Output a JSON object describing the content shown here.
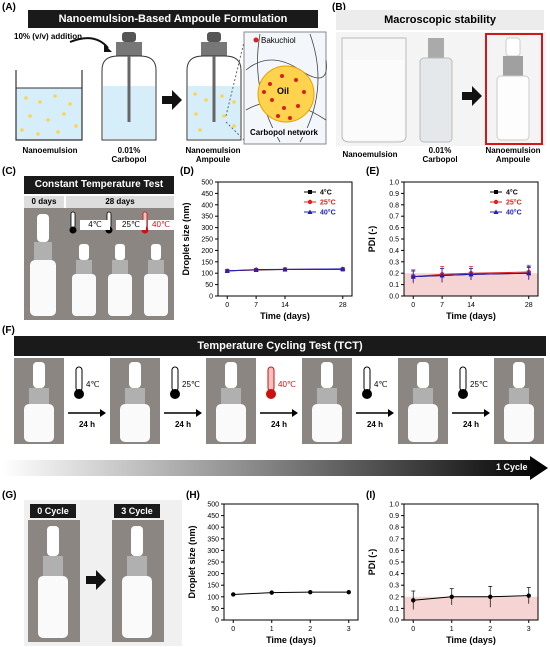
{
  "panels": {
    "a": {
      "letter": "(A)",
      "title": "Nanoemulsion-Based Ampoule Formulation",
      "addition": "10% (v/v) addition",
      "labels": [
        "Nanoemulsion",
        "0.01%\nCarbopol",
        "Nanoemulsion\nAmpoule"
      ],
      "legend": "Bakuchiol",
      "oil": "Oil",
      "network": "Carbopol network"
    },
    "b": {
      "letter": "(B)",
      "title": "Macroscopic stability",
      "labels": [
        "Nanoemulsion",
        "0.01%\nCarbopol",
        "Nanoemulsion\nAmpoule"
      ]
    },
    "c": {
      "letter": "(C)",
      "title": "Constant Temperature Test",
      "day0": "0 days",
      "day28": "28 days",
      "temps": [
        "4℃",
        "25℃",
        "40℃"
      ]
    },
    "d": {
      "letter": "(D)"
    },
    "e": {
      "letter": "(E)"
    },
    "f": {
      "letter": "(F)",
      "title": "Temperature Cycling Test (TCT)",
      "steps": [
        {
          "temp": "4℃",
          "time": "24 h"
        },
        {
          "temp": "25℃",
          "time": "24 h"
        },
        {
          "temp": "40℃",
          "time": "24 h"
        },
        {
          "temp": "4℃",
          "time": "24 h"
        },
        {
          "temp": "25℃",
          "time": "24 h"
        }
      ],
      "cycle": "1 Cycle"
    },
    "g": {
      "letter": "(G)",
      "labels": [
        "0 Cycle",
        "3 Cycle"
      ]
    },
    "h": {
      "letter": "(H)"
    },
    "i": {
      "letter": "(I)"
    }
  },
  "colors": {
    "c4": "#000000",
    "c25": "#e02020",
    "c40": "#2020c0",
    "hot": "#cc1111",
    "pdi_band": "#f6d4d4"
  },
  "chart_data": [
    {
      "id": "D",
      "type": "line",
      "xlabel": "Time (days)",
      "ylabel": "Droplet size (nm)",
      "x": [
        0,
        7,
        14,
        28
      ],
      "xticks": [
        "0",
        "7",
        "14",
        "28"
      ],
      "ylim": [
        0,
        500
      ],
      "yticks": [
        0,
        50,
        100,
        150,
        200,
        250,
        300,
        350,
        400,
        450,
        500
      ],
      "legend": "top-right",
      "series": [
        {
          "name": "4°C",
          "values": [
            110,
            114,
            116,
            117
          ]
        },
        {
          "name": "25°C",
          "values": [
            110,
            115,
            117,
            118
          ]
        },
        {
          "name": "40°C",
          "values": [
            110,
            116,
            117,
            119
          ]
        }
      ]
    },
    {
      "id": "E",
      "type": "line",
      "xlabel": "Time (days)",
      "ylabel": "PDI (-)",
      "x": [
        0,
        7,
        14,
        28
      ],
      "xticks": [
        "0",
        "7",
        "14",
        "28"
      ],
      "ylim": [
        0,
        1.0
      ],
      "yticks": [
        0.0,
        0.1,
        0.2,
        0.3,
        0.4,
        0.5,
        0.6,
        0.7,
        0.8,
        0.9,
        1.0
      ],
      "band": [
        0,
        0.2
      ],
      "legend": "top-right",
      "series": [
        {
          "name": "4°C",
          "values": [
            0.17,
            0.18,
            0.19,
            0.2
          ],
          "err": [
            0.05,
            0.06,
            0.05,
            0.05
          ]
        },
        {
          "name": "25°C",
          "values": [
            0.17,
            0.19,
            0.2,
            0.21
          ],
          "err": [
            0.06,
            0.07,
            0.06,
            0.06
          ]
        },
        {
          "name": "40°C",
          "values": [
            0.17,
            0.18,
            0.19,
            0.2
          ],
          "err": [
            0.05,
            0.06,
            0.05,
            0.06
          ]
        }
      ]
    },
    {
      "id": "H",
      "type": "line",
      "xlabel": "Time (days)",
      "ylabel": "Droplet size (nm)",
      "x": [
        0,
        1,
        2,
        3
      ],
      "xticks": [
        "0",
        "1",
        "2",
        "3"
      ],
      "ylim": [
        0,
        500
      ],
      "yticks": [
        0,
        50,
        100,
        150,
        200,
        250,
        300,
        350,
        400,
        450,
        500
      ],
      "series": [
        {
          "name": "",
          "values": [
            110,
            118,
            120,
            120
          ]
        }
      ]
    },
    {
      "id": "I",
      "type": "line",
      "xlabel": "Time (days)",
      "ylabel": "PDI (-)",
      "x": [
        0,
        1,
        2,
        3
      ],
      "xticks": [
        "0",
        "1",
        "2",
        "3"
      ],
      "ylim": [
        0,
        1.0
      ],
      "yticks": [
        0.0,
        0.1,
        0.2,
        0.3,
        0.4,
        0.5,
        0.6,
        0.7,
        0.8,
        0.9,
        1.0
      ],
      "band": [
        0,
        0.2
      ],
      "series": [
        {
          "name": "",
          "values": [
            0.17,
            0.2,
            0.2,
            0.21
          ],
          "err": [
            0.08,
            0.07,
            0.09,
            0.07
          ]
        }
      ]
    }
  ]
}
